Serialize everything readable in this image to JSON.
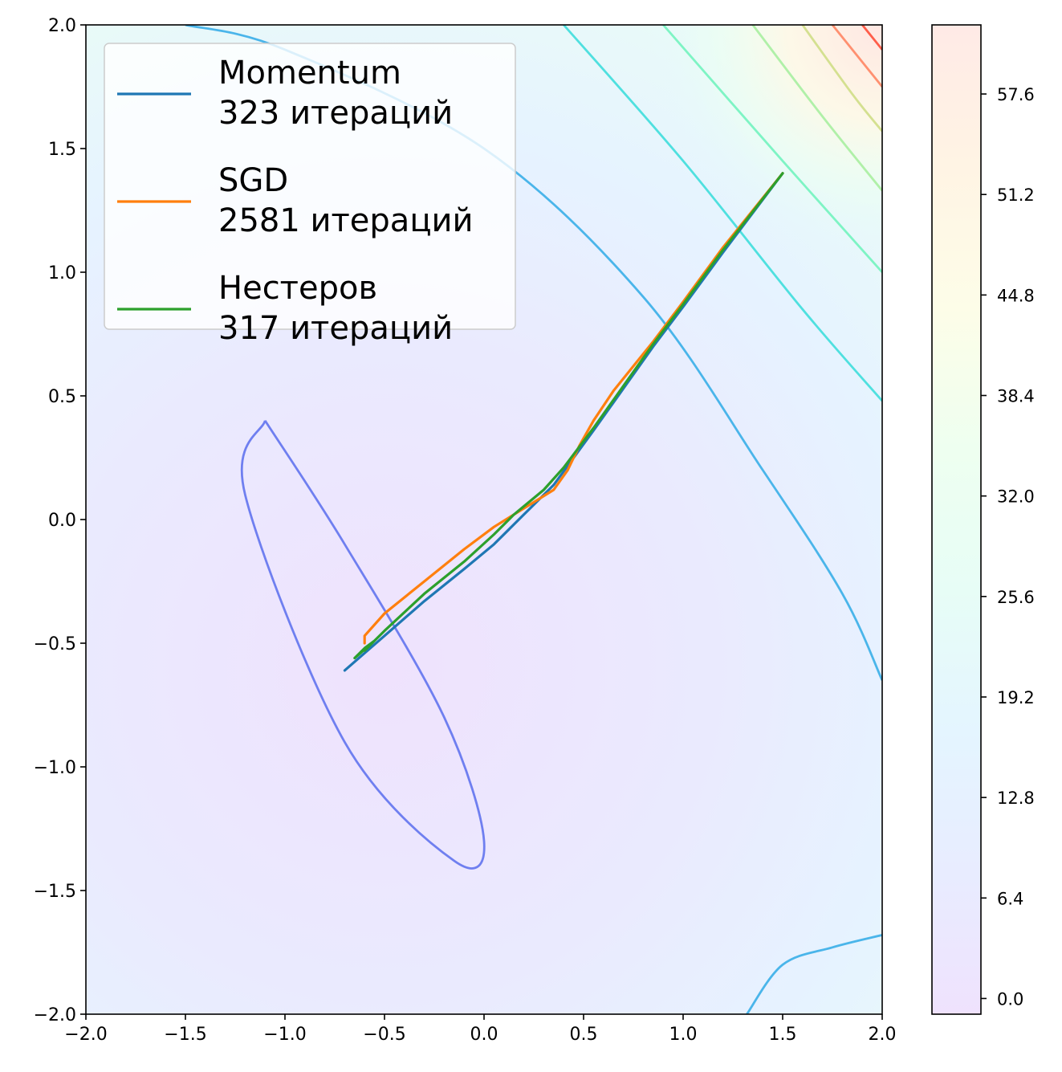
{
  "chart_data": [
    {
      "type": "line",
      "plot": "optimizer-trajectories-over-contour",
      "xlim": [
        -2.0,
        2.0
      ],
      "ylim": [
        -2.0,
        2.0
      ],
      "x_ticks": [
        -2.0,
        -1.5,
        -1.0,
        -0.5,
        0.0,
        0.5,
        1.0,
        1.5,
        2.0
      ],
      "x_tick_labels": [
        "−2.0",
        "−1.5",
        "−1.0",
        "−0.5",
        "0.0",
        "0.5",
        "1.0",
        "1.5",
        "2.0"
      ],
      "y_ticks": [
        2.0,
        1.5,
        1.0,
        0.5,
        0.0,
        -0.5,
        -1.0,
        -1.5,
        -2.0
      ],
      "y_tick_labels": [
        "2.0",
        "1.5",
        "1.0",
        "0.5",
        "0.0",
        "−0.5",
        "−1.0",
        "−1.5",
        "−2.0"
      ],
      "grid": false,
      "legend_position": "top-left",
      "series": [
        {
          "name": "Momentum",
          "label_line2": "323 итераций",
          "color": "#1f77b4",
          "x": [
            1.5,
            1.2,
            1.0,
            0.85,
            0.7,
            0.55,
            0.45,
            0.35,
            0.2,
            0.05,
            -0.1,
            -0.3,
            -0.5,
            -0.6,
            -0.7
          ],
          "y": [
            1.4,
            1.08,
            0.86,
            0.7,
            0.53,
            0.36,
            0.25,
            0.14,
            0.02,
            -0.1,
            -0.2,
            -0.33,
            -0.47,
            -0.54,
            -0.61
          ]
        },
        {
          "name": "SGD",
          "label_line2": "2581 итераций",
          "color": "#ff7f0e",
          "x": [
            1.5,
            1.2,
            1.0,
            0.85,
            0.65,
            0.55,
            0.48,
            0.42,
            0.35,
            0.25,
            0.15,
            0.05,
            -0.1,
            -0.3,
            -0.5,
            -0.6,
            -0.6
          ],
          "y": [
            1.4,
            1.1,
            0.88,
            0.72,
            0.52,
            0.4,
            0.3,
            0.2,
            0.12,
            0.07,
            0.02,
            -0.03,
            -0.12,
            -0.25,
            -0.38,
            -0.47,
            -0.5
          ]
        },
        {
          "name": "Нестеров",
          "label_line2": "317 итераций",
          "color": "#2ca02c",
          "x": [
            1.5,
            1.2,
            1.0,
            0.85,
            0.7,
            0.55,
            0.4,
            0.3,
            0.15,
            0.05,
            -0.1,
            -0.3,
            -0.5,
            -0.55,
            -0.6,
            -0.65,
            -0.55,
            -0.6
          ],
          "y": [
            1.4,
            1.09,
            0.87,
            0.71,
            0.54,
            0.37,
            0.21,
            0.12,
            0.02,
            -0.06,
            -0.17,
            -0.3,
            -0.45,
            -0.49,
            -0.52,
            -0.56,
            -0.49,
            -0.53
          ]
        }
      ],
      "contour_lines": [
        {
          "color": "#6f7ff0",
          "shape": "closed-ellipse",
          "x": [
            -1.1,
            -0.7,
            -0.2,
            -0.0,
            -0.15,
            -0.7,
            -1.2,
            -1.1
          ],
          "y": [
            0.4,
            -0.1,
            -0.8,
            -1.3,
            -1.38,
            -0.9,
            0.1,
            0.4
          ]
        },
        {
          "color": "#4ab5ea",
          "x": [
            -1.5,
            -1.0,
            0.0,
            0.8,
            1.4,
            1.8,
            2.0
          ],
          "y": [
            2.0,
            1.9,
            1.5,
            0.9,
            0.2,
            -0.3,
            -0.65
          ]
        },
        {
          "color": "#4ab5ea",
          "x": [
            1.32,
            1.5,
            1.75,
            2.0
          ],
          "y": [
            -2.0,
            -1.8,
            -1.73,
            -1.68
          ]
        },
        {
          "color": "#4fe0df",
          "x": [
            0.4,
            1.0,
            1.6,
            2.0
          ],
          "y": [
            2.0,
            1.45,
            0.85,
            0.48
          ]
        },
        {
          "color": "#7ef4c4",
          "x": [
            0.9,
            1.5,
            2.0
          ],
          "y": [
            2.0,
            1.45,
            1.0
          ]
        },
        {
          "color": "#b0f0a8",
          "x": [
            1.35,
            1.7,
            2.0
          ],
          "y": [
            2.0,
            1.63,
            1.33
          ]
        },
        {
          "color": "#d4e090",
          "x": [
            1.6,
            1.85,
            2.0
          ],
          "y": [
            2.0,
            1.72,
            1.57
          ]
        },
        {
          "color": "#ff9070",
          "x": [
            1.75,
            2.0
          ],
          "y": [
            2.0,
            1.75
          ]
        },
        {
          "color": "#ff5d4a",
          "x": [
            1.9,
            2.0
          ],
          "y": [
            2.0,
            1.9
          ]
        }
      ]
    },
    {
      "type": "colorbar",
      "range": [
        -1.0,
        62.0
      ],
      "tick_values": [
        0.0,
        6.4,
        12.8,
        19.2,
        25.6,
        32.0,
        38.4,
        44.8,
        51.2,
        57.6
      ],
      "tick_labels": [
        "0.0",
        "6.4",
        "12.8",
        "19.2",
        "25.6",
        "32.0",
        "38.4",
        "44.8",
        "51.2",
        "57.6"
      ],
      "colors": [
        "#efe2fd",
        "#e8ecff",
        "#e4f5ff",
        "#e7fdf6",
        "#eefff0",
        "#fdfde8",
        "#fff4e4",
        "#ffeae6"
      ]
    }
  ]
}
